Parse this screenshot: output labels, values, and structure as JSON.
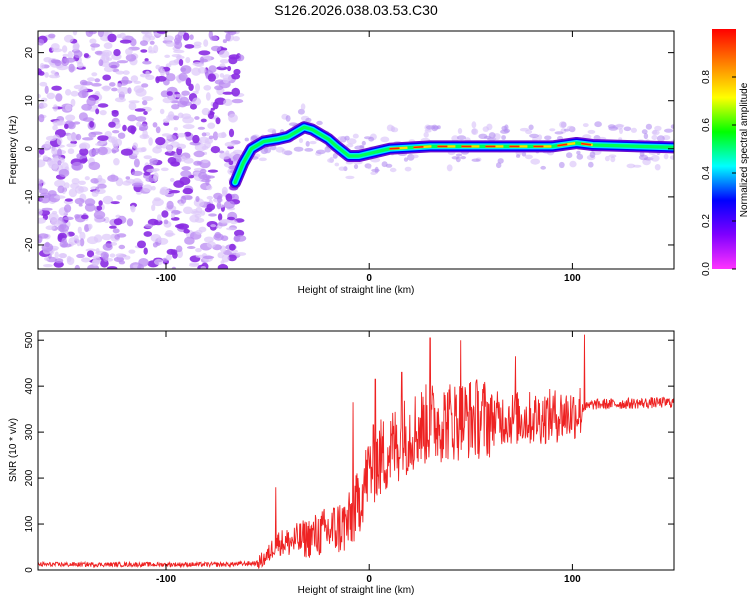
{
  "title": "S126.2026.038.03.53.C30",
  "chart_data": [
    {
      "type": "heatmap",
      "name": "spectrogram",
      "xlabel": "Height of straight line (km)",
      "ylabel": "Frequency (Hz)",
      "xlim": [
        -163,
        150
      ],
      "ylim": [
        -25,
        24.5
      ],
      "xticks": [
        -100,
        0,
        100
      ],
      "yticks": [
        -20,
        -10,
        0,
        10,
        20
      ],
      "noise_region_x": [
        -163,
        -66
      ],
      "ridge_points": [
        {
          "x": -66,
          "y": -7
        },
        {
          "x": -62,
          "y": -3
        },
        {
          "x": -58,
          "y": 0
        },
        {
          "x": -52,
          "y": 1.5
        },
        {
          "x": -45,
          "y": 2
        },
        {
          "x": -40,
          "y": 2.5
        },
        {
          "x": -36,
          "y": 3.5
        },
        {
          "x": -32,
          "y": 4.5
        },
        {
          "x": -28,
          "y": 4
        },
        {
          "x": -24,
          "y": 3
        },
        {
          "x": -20,
          "y": 2
        },
        {
          "x": -16,
          "y": 0.5
        },
        {
          "x": -10,
          "y": -1.5
        },
        {
          "x": -5,
          "y": -1.5
        },
        {
          "x": 0,
          "y": -1
        },
        {
          "x": 10,
          "y": 0
        },
        {
          "x": 30,
          "y": 0.5
        },
        {
          "x": 60,
          "y": 0.5
        },
        {
          "x": 90,
          "y": 0.5
        },
        {
          "x": 102,
          "y": 1.2
        },
        {
          "x": 110,
          "y": 0.8
        },
        {
          "x": 150,
          "y": 0.3
        }
      ],
      "colorbar": {
        "label": "Normalized spectral amplitude",
        "range": [
          0,
          1
        ],
        "ticks": [
          {
            "value": 0,
            "label": "0.0"
          },
          {
            "value": 0.2,
            "label": "0.2"
          },
          {
            "value": 0.4,
            "label": "0.4"
          },
          {
            "value": 0.6,
            "label": "0.6"
          },
          {
            "value": 0.8,
            "label": "0.8"
          }
        ],
        "colors": [
          "#ff33ff",
          "#7f00ff",
          "#0000ff",
          "#00ffff",
          "#00ff00",
          "#ffff00",
          "#ff8000",
          "#ff0000"
        ]
      }
    },
    {
      "type": "line",
      "name": "snr",
      "xlabel": "Height of straight line (km)",
      "ylabel": "SNR (10 * v/v)",
      "xlim": [
        -163,
        150
      ],
      "ylim": [
        0,
        520
      ],
      "xticks": [
        -100,
        0,
        100
      ],
      "yticks": [
        0,
        100,
        200,
        300,
        400,
        500
      ],
      "color": "#ee2222",
      "anchors": [
        {
          "x": -163,
          "y": 12
        },
        {
          "x": -70,
          "y": 12
        },
        {
          "x": -55,
          "y": 15
        },
        {
          "x": -50,
          "y": 30
        },
        {
          "x": -46,
          "y": 60
        },
        {
          "x": -40,
          "y": 60
        },
        {
          "x": -30,
          "y": 70
        },
        {
          "x": -20,
          "y": 85
        },
        {
          "x": -10,
          "y": 100
        },
        {
          "x": -5,
          "y": 150
        },
        {
          "x": 0,
          "y": 220
        },
        {
          "x": 10,
          "y": 260
        },
        {
          "x": 20,
          "y": 300
        },
        {
          "x": 30,
          "y": 320
        },
        {
          "x": 50,
          "y": 330
        },
        {
          "x": 80,
          "y": 330
        },
        {
          "x": 100,
          "y": 340
        },
        {
          "x": 110,
          "y": 360
        },
        {
          "x": 150,
          "y": 365
        }
      ],
      "peaks": [
        {
          "x": -46,
          "y": 180
        },
        {
          "x": -8,
          "y": 365
        },
        {
          "x": 3,
          "y": 415
        },
        {
          "x": 16,
          "y": 430
        },
        {
          "x": 30,
          "y": 505
        },
        {
          "x": 45,
          "y": 500
        },
        {
          "x": 72,
          "y": 465
        },
        {
          "x": 106,
          "y": 512
        }
      ]
    }
  ]
}
